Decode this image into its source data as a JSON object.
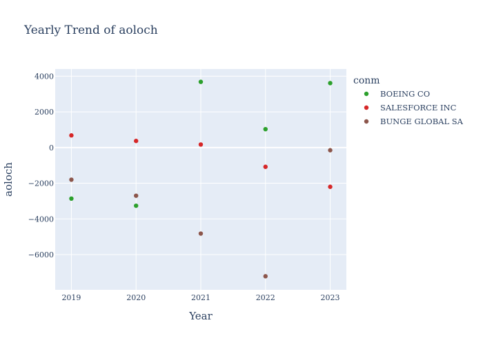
{
  "chart_data": {
    "type": "scatter",
    "title": "Yearly Trend of aoloch",
    "xlabel": "Year",
    "ylabel": "aoloch",
    "x": [
      2019,
      2020,
      2021,
      2022,
      2023
    ],
    "xlim": [
      2018.75,
      2023.25
    ],
    "ylim": [
      -7970,
      4400
    ],
    "x_ticks": [
      "2019",
      "2020",
      "2021",
      "2022",
      "2023"
    ],
    "y_ticks": [
      {
        "value": 4000,
        "label": "4000"
      },
      {
        "value": 2000,
        "label": "2000"
      },
      {
        "value": 0,
        "label": "0"
      },
      {
        "value": -2000,
        "label": "−2000"
      },
      {
        "value": -4000,
        "label": "−4000"
      },
      {
        "value": -6000,
        "label": "−6000"
      }
    ],
    "grid": true,
    "legend": {
      "title": "conm",
      "position": "right"
    },
    "series": [
      {
        "name": "BOEING CO",
        "color": "#2ca02c",
        "values": [
          -2860,
          -3260,
          3680,
          1030,
          3610
        ]
      },
      {
        "name": "SALESFORCE INC",
        "color": "#d62728",
        "values": [
          680,
          370,
          170,
          -1080,
          -2200
        ]
      },
      {
        "name": "BUNGE GLOBAL SA",
        "color": "#8c564b",
        "values": [
          -1800,
          -2700,
          -4820,
          -7210,
          -150
        ]
      }
    ]
  }
}
